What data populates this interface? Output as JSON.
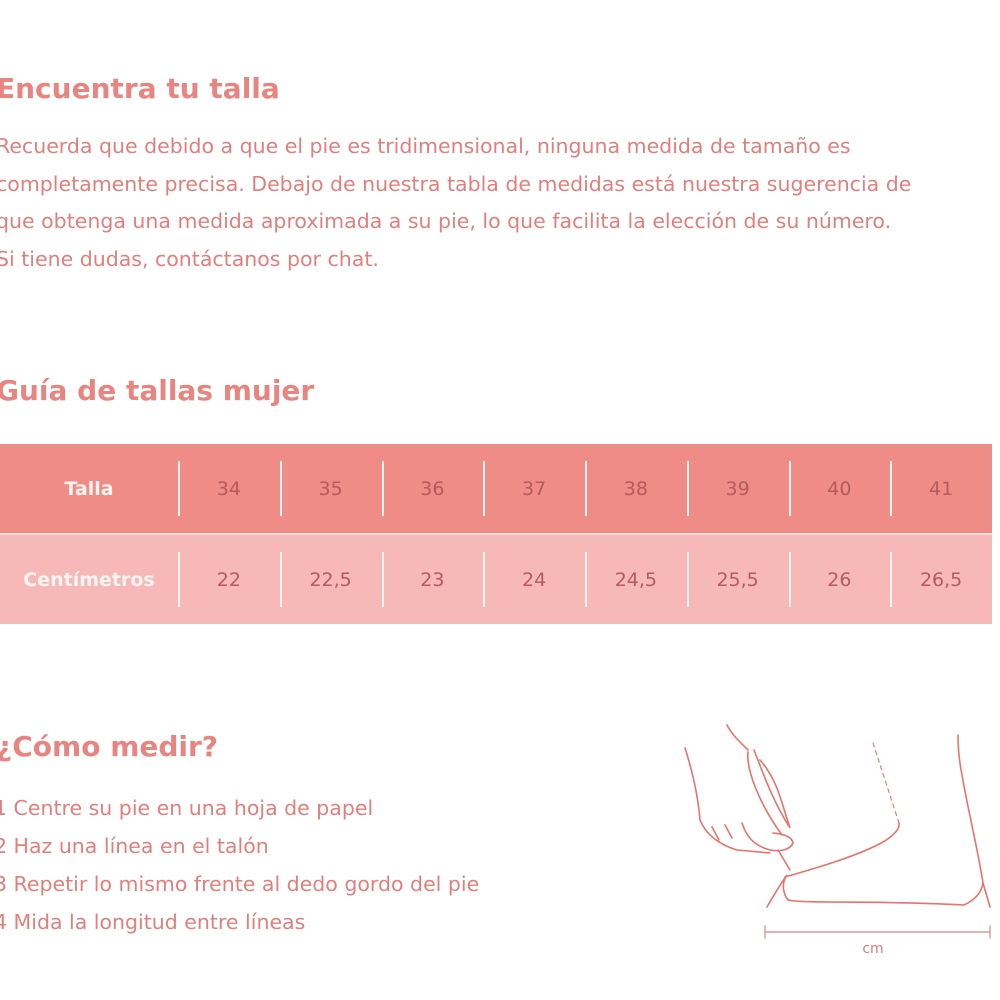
{
  "intro": {
    "title": "Encuentra tu talla",
    "lines": [
      "Recuerda que debido a que el pie es tridimensional, ninguna medida de tamaño es",
      "completamente precisa. Debajo de nuestra tabla de medidas está nuestra sugerencia de",
      "que obtenga una medida aproximada a su pie, lo que facilita la elección de su número.",
      "Si tiene dudas, contáctanos por chat."
    ]
  },
  "guide": {
    "title": "Guía de tallas mujer",
    "rows": [
      {
        "label": "Talla",
        "values": [
          "34",
          "35",
          "36",
          "37",
          "38",
          "39",
          "40",
          "41"
        ]
      },
      {
        "label": "Centímetros",
        "values": [
          "22",
          "22,5",
          "23",
          "24",
          "24,5",
          "25,5",
          "26",
          "26,5"
        ]
      }
    ]
  },
  "measure": {
    "title": "¿Cómo medir?",
    "steps": [
      "1 Centre su pie en una hoja de papel",
      "2 Haz una línea en el talón",
      "3 Repetir lo mismo frente al dedo gordo del pie",
      "4 Mida la longitud entre líneas"
    ],
    "unit_label": "cm"
  },
  "colors": {
    "header_row": "#f08c86",
    "body_row": "#f6b9b8",
    "text": "#e27f7c"
  }
}
